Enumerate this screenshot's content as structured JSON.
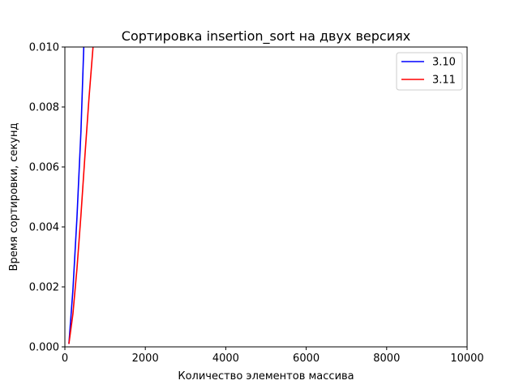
{
  "chart_data": {
    "type": "line",
    "title": "Сортировка insertion_sort на двух версиях",
    "xlabel": "Количество элементов массива",
    "ylabel": "Время сортировки, секунд",
    "xlim": [
      0,
      10000
    ],
    "ylim": [
      0,
      0.01
    ],
    "x_ticks": [
      0,
      2000,
      4000,
      6000,
      8000,
      10000
    ],
    "x_tick_labels": [
      "0",
      "2000",
      "4000",
      "6000",
      "8000",
      "10000"
    ],
    "y_ticks": [
      0,
      0.002,
      0.004,
      0.006,
      0.008,
      0.01
    ],
    "y_tick_labels": [
      "0.000",
      "0.002",
      "0.004",
      "0.006",
      "0.008",
      "0.010"
    ],
    "grid": false,
    "legend_position": "top-right",
    "series": [
      {
        "name": "3.10",
        "color": "#0000ff",
        "x": [
          100,
          200,
          300,
          400,
          470
        ],
        "y": [
          0.0001,
          0.0019,
          0.0043,
          0.0072,
          0.01
        ]
      },
      {
        "name": "3.11",
        "color": "#ff0000",
        "x": [
          100,
          200,
          300,
          400,
          500,
          600,
          700
        ],
        "y": [
          0.0001,
          0.0011,
          0.0026,
          0.0044,
          0.0064,
          0.0083,
          0.01
        ]
      }
    ]
  }
}
